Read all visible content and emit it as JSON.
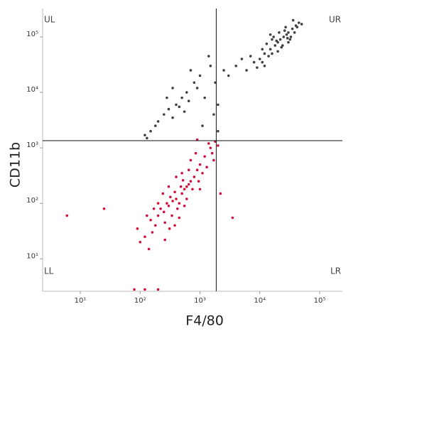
{
  "chart_data": {
    "type": "scatter",
    "x_label": "F4/80",
    "y_label": "CD11b",
    "log_x": true,
    "log_y": true,
    "xlim": [
      2.35,
      240000
    ],
    "ylim": [
      2.6,
      325000
    ],
    "xticks": [
      {
        "value": 10,
        "label": "10¹"
      },
      {
        "value": 100,
        "label": "10²"
      },
      {
        "value": 1000,
        "label": "10³"
      },
      {
        "value": 10000,
        "label": "10⁴"
      },
      {
        "value": 100000,
        "label": "10⁵"
      }
    ],
    "yticks": [
      {
        "value": 10,
        "label": "10¹"
      },
      {
        "value": 100,
        "label": "10²"
      },
      {
        "value": 1000,
        "label": "10³"
      },
      {
        "value": 10000,
        "label": "10⁴"
      },
      {
        "value": 100000,
        "label": "10⁵"
      }
    ],
    "gate_x": 1870,
    "gate_y": 1350,
    "quadrant_labels": [
      "UL",
      "UR",
      "LL",
      "LR"
    ],
    "series": [
      {
        "color": "#d0103a",
        "x": [
          400,
          300,
          500,
          600,
          250,
          350,
          450,
          700,
          800,
          200,
          150,
          180,
          550,
          650,
          900,
          1000,
          1200,
          1500,
          1800,
          380,
          420,
          320,
          280,
          520,
          480,
          750,
          600,
          340,
          260,
          220,
          160,
          120,
          100,
          130,
          90,
          700,
          850,
          1100,
          1300,
          950,
          400,
          300,
          240,
          200,
          170,
          1400,
          1600,
          1700,
          2000,
          550,
          450,
          380,
          310,
          260,
          140,
          80,
          120,
          200,
          6,
          25,
          3500,
          2200,
          1000,
          650,
          500,
          900
        ],
        "values": [
          120,
          90,
          150,
          200,
          70,
          110,
          100,
          250,
          300,
          60,
          50,
          40,
          180,
          220,
          400,
          500,
          700,
          1000,
          1300,
          160,
          80,
          130,
          100,
          260,
          200,
          180,
          120,
          60,
          45,
          80,
          30,
          25,
          20,
          60,
          35,
          600,
          800,
          350,
          450,
          250,
          300,
          200,
          150,
          100,
          80,
          1200,
          800,
          600,
          1100,
          90,
          55,
          40,
          35,
          22,
          15,
          2.8,
          2.8,
          2.8,
          60,
          80,
          55,
          150,
          180,
          400,
          350,
          1400
        ]
      },
      {
        "color": "#404040",
        "x": [
          20000,
          25000,
          15000,
          30000,
          12000,
          18000,
          22000,
          28000,
          35000,
          40000,
          10000,
          8000,
          16000,
          24000,
          32000,
          14000,
          26000,
          20000,
          11000,
          38000,
          45000,
          9000,
          13000,
          30000,
          17000,
          21000,
          27000,
          12000,
          7000,
          36000,
          42000,
          19000,
          23000,
          15000,
          33000,
          6000,
          11000,
          29000,
          50000,
          16000,
          300,
          250,
          400,
          200,
          500,
          600,
          350,
          180,
          150,
          800,
          1000,
          1500,
          700,
          900,
          120,
          450,
          550,
          1200,
          2000,
          1800,
          2500,
          4000,
          3000,
          5000,
          1100,
          130,
          2000,
          280,
          650,
          350,
          1700,
          1400
        ],
        "values": [
          80000,
          100000,
          60000,
          120000,
          50000,
          70000,
          90000,
          110000,
          140000,
          160000,
          40000,
          35000,
          90000,
          70000,
          90000,
          45000,
          130000,
          55000,
          60000,
          120000,
          180000,
          28000,
          75000,
          80000,
          100000,
          120000,
          150000,
          30000,
          45000,
          200000,
          150000,
          85000,
          65000,
          110000,
          100000,
          25000,
          35000,
          95000,
          170000,
          50000,
          5000,
          4000,
          6000,
          3000,
          8000,
          10000,
          3500,
          2500,
          2000,
          15000,
          20000,
          30000,
          25000,
          12000,
          1700,
          5500,
          4500,
          8000,
          6000,
          15000,
          25000,
          30000,
          20000,
          40000,
          2500,
          1500,
          2000,
          8000,
          7000,
          12000,
          4000,
          45000
        ]
      }
    ]
  }
}
